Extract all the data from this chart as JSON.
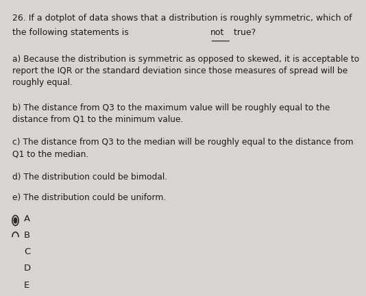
{
  "question_number": "26.",
  "question_text": "If a dotplot of data shows that a distribution is roughly symmetric, which of\nthe following statements is not true?",
  "question_underline": "not",
  "options": [
    {
      "label": "a)",
      "text": "Because the distribution is symmetric as opposed to skewed, it is acceptable to\nreport the IQR or the standard deviation since those measures of spread will be\nroughly equal."
    },
    {
      "label": "b)",
      "text": "The distance from Q3 to the maximum value will be roughly equal to the\ndistance from Q1 to the minimum value."
    },
    {
      "label": "c)",
      "text": "The distance from Q3 to the median will be roughly equal to the distance from\nQ1 to the median."
    },
    {
      "label": "d)",
      "text": "The distribution could be bimodal."
    },
    {
      "label": "e)",
      "text": "The distribution could be uniform."
    }
  ],
  "answer_choices": [
    "A",
    "B",
    "C",
    "D",
    "E"
  ],
  "selected_answer": "A",
  "background_color": "#d8d5d0",
  "text_color": "#1a1a1a",
  "font_size_question": 9.0,
  "font_size_options": 8.8,
  "font_size_answers": 9.5,
  "radio_selected_color": "#2a2a2a",
  "radio_unselected_color": "#2a2a2a"
}
